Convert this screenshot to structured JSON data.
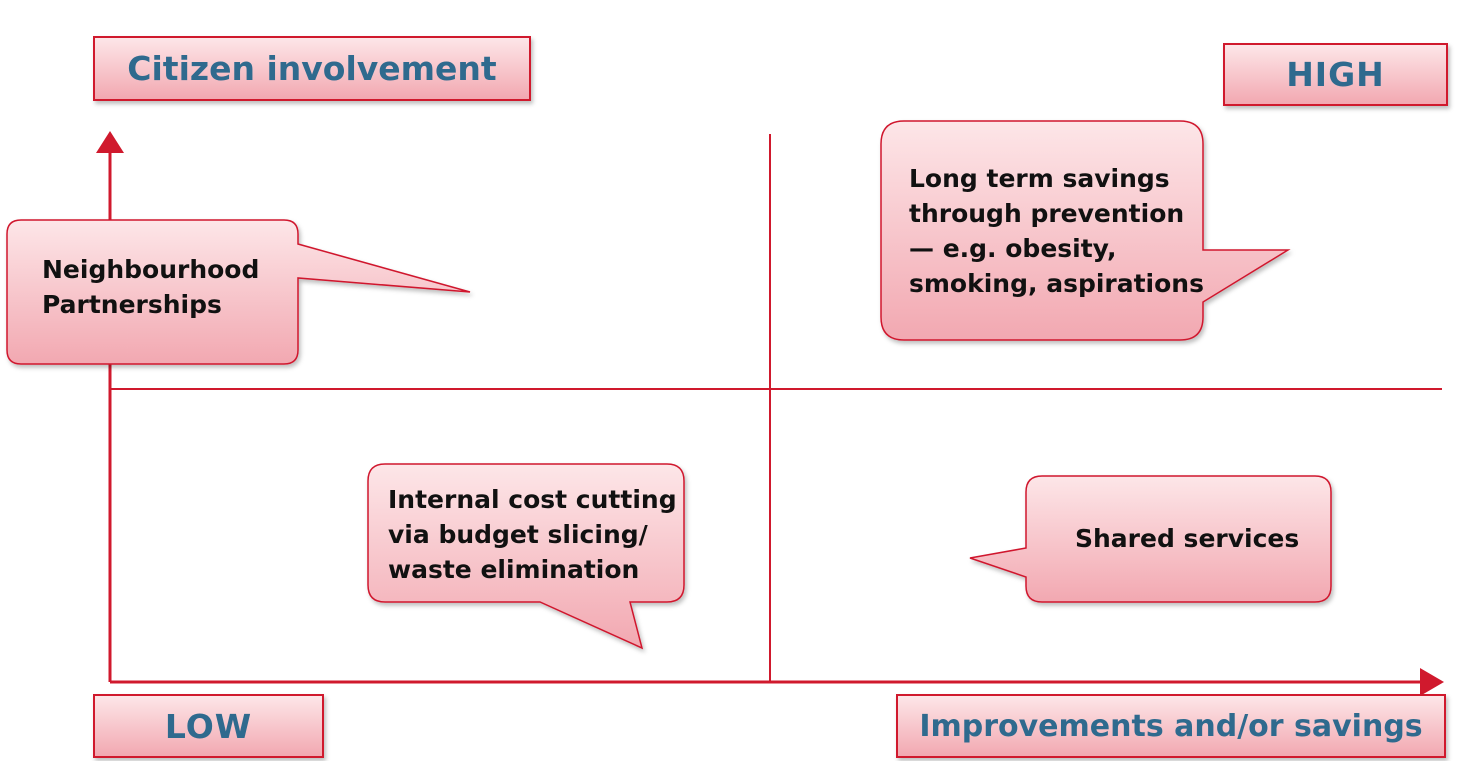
{
  "labels": {
    "y_axis": "Citizen involvement",
    "high": "HIGH",
    "low": "LOW",
    "x_axis": "Improvements and/or savings"
  },
  "callouts": {
    "neighbourhood": [
      "Neighbourhood",
      "Partnerships"
    ],
    "prevention": [
      "Long term savings",
      "through prevention",
      "— e.g. obesity,",
      "smoking, aspirations"
    ],
    "cost_cutting": [
      "Internal cost cutting",
      "via budget slicing/",
      "waste elimination"
    ],
    "shared_services": "Shared services"
  },
  "colors": {
    "accent_red": "#d0192d",
    "label_text": "#2f6a8e",
    "fill_light": "#fde6e8",
    "fill_dark": "#f2a8b1"
  }
}
